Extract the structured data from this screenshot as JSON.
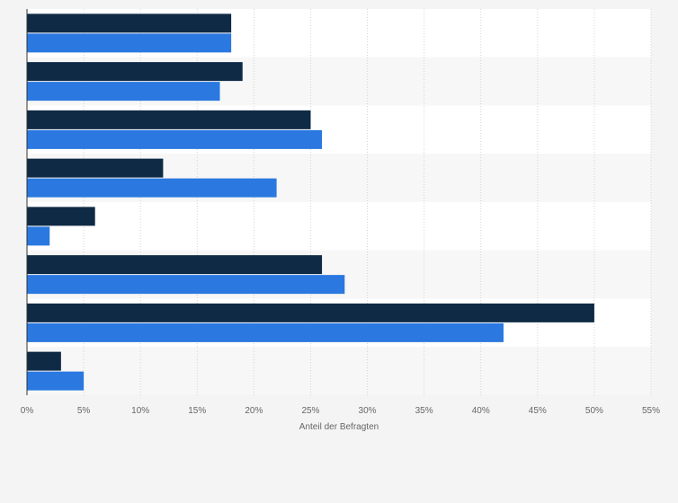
{
  "chart_data": {
    "type": "bar",
    "orientation": "horizontal",
    "title": "",
    "xlabel": "Anteil der Befragten",
    "ylabel": "",
    "xlim": [
      0,
      55
    ],
    "x_ticks": [
      "0%",
      "5%",
      "10%",
      "15%",
      "20%",
      "25%",
      "30%",
      "35%",
      "40%",
      "45%",
      "50%",
      "55%"
    ],
    "grid": true,
    "legend": "none",
    "categories": [
      "",
      "",
      "",
      "",
      "",
      "",
      "",
      ""
    ],
    "series": [
      {
        "color": "#0f2a45",
        "values": [
          18,
          19,
          25,
          12,
          6,
          26,
          50,
          3
        ]
      },
      {
        "color": "#2a78e0",
        "values": [
          18,
          17,
          26,
          22,
          2,
          28,
          42,
          5
        ]
      }
    ]
  },
  "colors": {
    "background": "#f4f4f4",
    "plot_band_light": "#ffffff",
    "plot_band_shade": "#f7f7f7",
    "gridline": "#d4d4d4",
    "axis": "#333333",
    "tick_text": "#666666"
  }
}
